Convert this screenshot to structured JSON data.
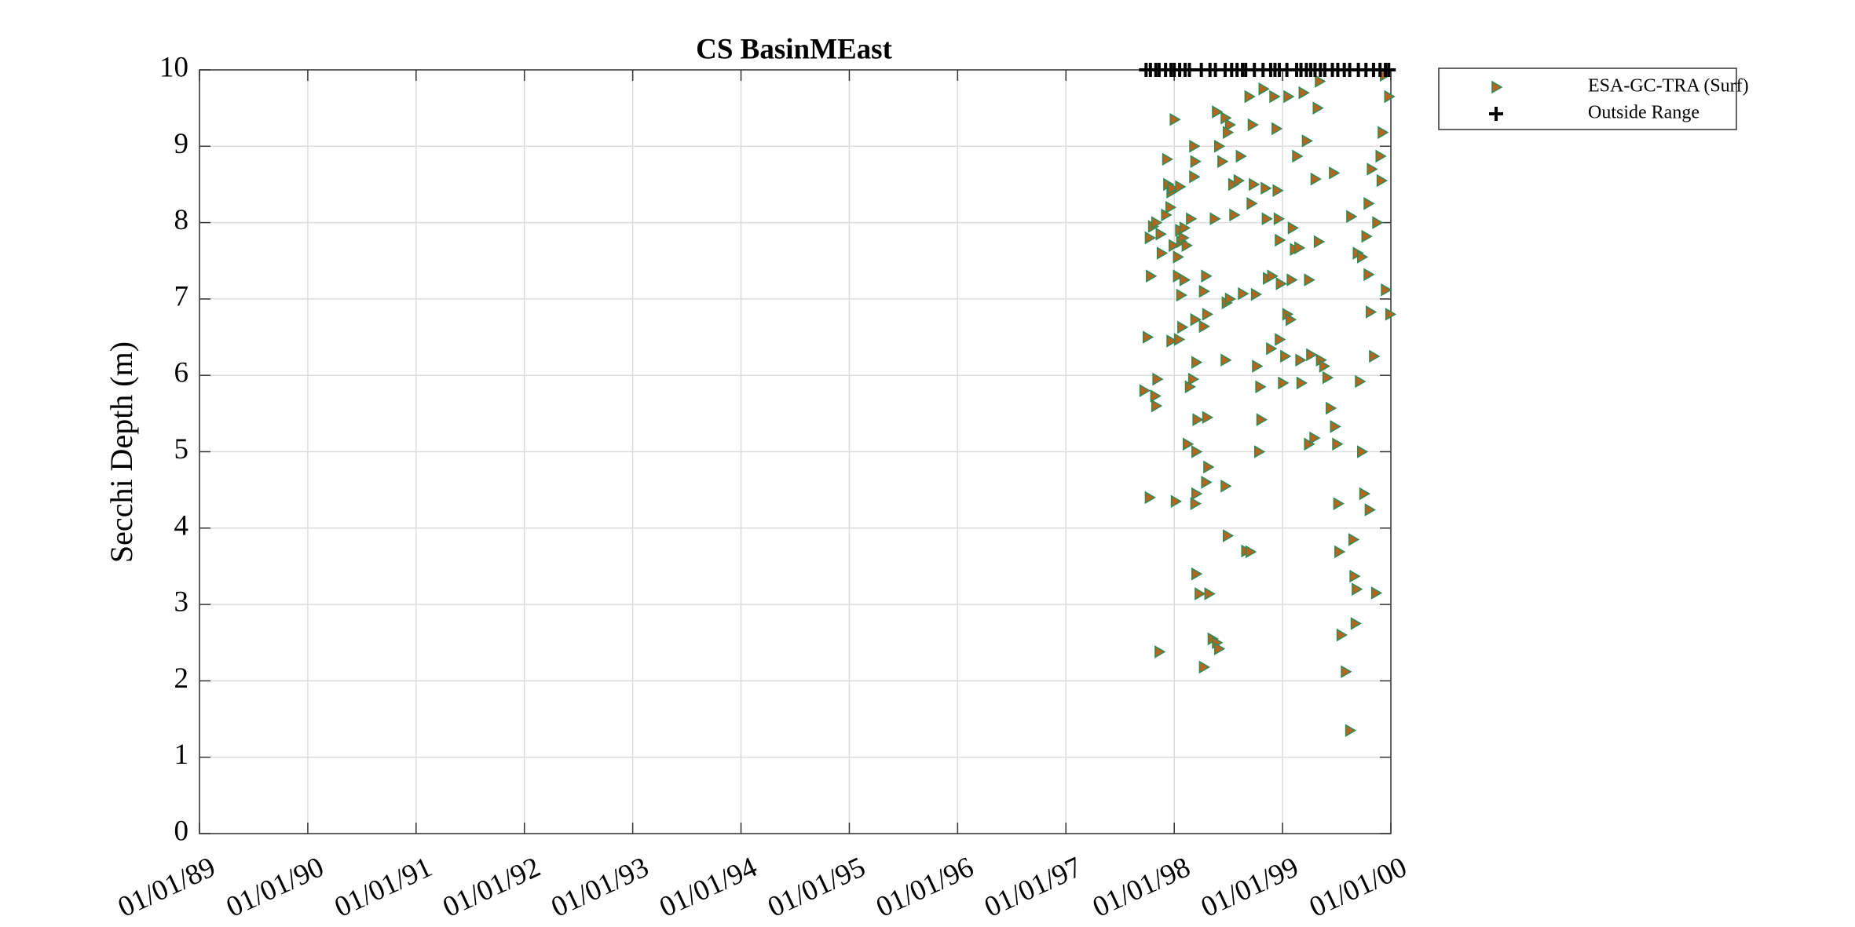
{
  "chart_data": {
    "type": "scatter",
    "title": "CS BasinMEast",
    "ylabel": "Secchi Depth (m)",
    "xlim": [
      1989,
      2000
    ],
    "ylim": [
      0,
      10
    ],
    "xticks": [
      {
        "value": 1989,
        "label": "01/01/89"
      },
      {
        "value": 1990,
        "label": "01/01/90"
      },
      {
        "value": 1991,
        "label": "01/01/91"
      },
      {
        "value": 1992,
        "label": "01/01/92"
      },
      {
        "value": 1993,
        "label": "01/01/93"
      },
      {
        "value": 1994,
        "label": "01/01/94"
      },
      {
        "value": 1995,
        "label": "01/01/95"
      },
      {
        "value": 1996,
        "label": "01/01/96"
      },
      {
        "value": 1997,
        "label": "01/01/97"
      },
      {
        "value": 1998,
        "label": "01/01/98"
      },
      {
        "value": 1999,
        "label": "01/01/99"
      },
      {
        "value": 2000,
        "label": "01/01/00"
      }
    ],
    "yticks": [
      0,
      1,
      2,
      3,
      4,
      5,
      6,
      7,
      8,
      9,
      10
    ],
    "grid": true,
    "legend": "outside-top-right",
    "series": [
      {
        "name": "ESA-GC-TRA (Surf)",
        "marker": "triangle-right",
        "color": "#b5651d",
        "edgecolor": "#2e8b57",
        "x": [
          1997.75,
          1997.72,
          1997.77,
          1997.8,
          1997.83,
          1997.78,
          1997.82,
          1997.83,
          1997.84,
          1997.77,
          1997.86,
          1997.87,
          1997.92,
          1997.88,
          1997.93,
          1997.94,
          1997.97,
          1997.96,
          1997.98,
          1998.0,
          1997.99,
          1998.03,
          1998.05,
          1998.06,
          1998.08,
          1998.09,
          1998.11,
          1998.03,
          1997.97,
          1998.04,
          1998.06,
          1998.09,
          1998.07,
          1998.01,
          1998.05,
          1998.12,
          1998.14,
          1998.17,
          1998.2,
          1998.19,
          1998.18,
          1998.19,
          1998.18,
          1998.15,
          1998.2,
          1998.21,
          1998.2,
          1998.19,
          1998.2,
          1998.23,
          1998.27,
          1998.29,
          1998.27,
          1998.3,
          1998.27,
          1998.3,
          1998.31,
          1998.29,
          1998.32,
          1998.35,
          1998.39,
          1998.41,
          1998.37,
          1998.39,
          1998.41,
          1998.44,
          1998.47,
          1998.51,
          1998.49,
          1998.48,
          1998.47,
          1998.51,
          1998.47,
          1998.49,
          1998.55,
          1998.54,
          1998.59,
          1998.61,
          1998.63,
          1998.66,
          1998.7,
          1998.69,
          1998.72,
          1998.71,
          1998.73,
          1998.75,
          1998.76,
          1998.79,
          1998.8,
          1998.78,
          1998.82,
          1998.84,
          1998.85,
          1998.86,
          1998.89,
          1998.9,
          1998.92,
          1998.94,
          1998.95,
          1998.96,
          1998.97,
          1998.98,
          1998.97,
          1999.0,
          1999.02,
          1999.04,
          1999.07,
          1999.08,
          1999.11,
          1999.09,
          1999.05,
          1999.13,
          1999.15,
          1999.16,
          1999.17,
          1999.19,
          1999.22,
          1999.24,
          1999.26,
          1999.24,
          1999.29,
          1999.33,
          1999.3,
          1999.34,
          1999.32,
          1999.35,
          1999.38,
          1999.41,
          1999.44,
          1999.48,
          1999.5,
          1999.47,
          1999.51,
          1999.52,
          1999.54,
          1999.58,
          1999.62,
          1999.63,
          1999.67,
          1999.65,
          1999.66,
          1999.68,
          1999.69,
          1999.73,
          1999.77,
          1999.79,
          1999.81,
          1999.75,
          1999.8,
          1999.86,
          1999.84,
          1999.87,
          1999.9,
          1999.92,
          1999.94,
          1999.98,
          1999.95,
          1999.99,
          1999.79,
          1999.82,
          1999.91,
          1999.71,
          1999.73
        ],
        "values": [
          6.5,
          5.8,
          7.8,
          7.95,
          8.0,
          7.3,
          5.73,
          5.6,
          5.95,
          4.4,
          2.38,
          7.85,
          8.1,
          7.6,
          8.83,
          8.5,
          8.4,
          8.2,
          8.45,
          9.35,
          7.7,
          7.55,
          7.9,
          7.75,
          7.8,
          7.93,
          7.7,
          7.3,
          6.45,
          6.47,
          7.05,
          7.25,
          6.63,
          4.35,
          8.47,
          5.1,
          5.85,
          5.95,
          6.17,
          6.73,
          8.6,
          8.8,
          9.0,
          8.05,
          5.0,
          5.42,
          4.45,
          4.32,
          3.4,
          3.14,
          2.18,
          7.3,
          7.1,
          6.8,
          6.64,
          5.45,
          4.8,
          4.6,
          3.14,
          2.55,
          2.5,
          2.42,
          8.05,
          9.45,
          9.0,
          8.8,
          9.37,
          9.28,
          9.18,
          6.95,
          6.2,
          7.0,
          4.55,
          3.9,
          8.1,
          8.5,
          8.55,
          8.87,
          7.07,
          3.7,
          3.69,
          9.65,
          9.28,
          8.25,
          8.5,
          7.06,
          6.12,
          5.85,
          5.42,
          5.0,
          9.75,
          8.45,
          8.05,
          7.27,
          6.35,
          7.3,
          9.65,
          9.23,
          8.42,
          8.05,
          7.77,
          7.2,
          6.47,
          5.9,
          6.25,
          6.8,
          6.73,
          7.25,
          7.65,
          7.93,
          9.65,
          8.87,
          7.67,
          6.2,
          5.9,
          9.7,
          9.07,
          7.25,
          6.27,
          5.1,
          5.18,
          7.75,
          8.57,
          9.85,
          9.5,
          6.2,
          6.12,
          5.97,
          5.57,
          5.33,
          5.1,
          8.65,
          4.32,
          3.69,
          2.6,
          2.12,
          1.35,
          8.08,
          2.75,
          3.85,
          3.37,
          3.2,
          7.6,
          7.55,
          7.82,
          7.32,
          6.83,
          4.45,
          4.24,
          3.15,
          6.25,
          8.0,
          8.87,
          9.18,
          9.93,
          9.65,
          7.12,
          6.8,
          8.25,
          8.7,
          8.55,
          5.92,
          5.0
        ]
      },
      {
        "name": "Outside Range",
        "marker": "plus",
        "color": "#000000",
        "x": [
          1997.74,
          1997.78,
          1997.83,
          1997.86,
          1997.92,
          1997.97,
          1998.0,
          1998.05,
          1998.1,
          1998.14,
          1998.25,
          1998.33,
          1998.38,
          1998.47,
          1998.53,
          1998.58,
          1998.63,
          1998.66,
          1998.74,
          1998.82,
          1998.89,
          1998.93,
          1998.97,
          1999.04,
          1999.13,
          1999.17,
          1999.22,
          1999.26,
          1999.3,
          1999.35,
          1999.39,
          1999.46,
          1999.51,
          1999.57,
          1999.62,
          1999.7,
          1999.77,
          1999.84,
          1999.9,
          1999.95,
          1999.98
        ],
        "values": [
          10,
          10,
          10,
          10,
          10,
          10,
          10,
          10,
          10,
          10,
          10,
          10,
          10,
          10,
          10,
          10,
          10,
          10,
          10,
          10,
          10,
          10,
          10,
          10,
          10,
          10,
          10,
          10,
          10,
          10,
          10,
          10,
          10,
          10,
          10,
          10,
          10,
          10,
          10,
          10,
          10
        ]
      }
    ]
  }
}
